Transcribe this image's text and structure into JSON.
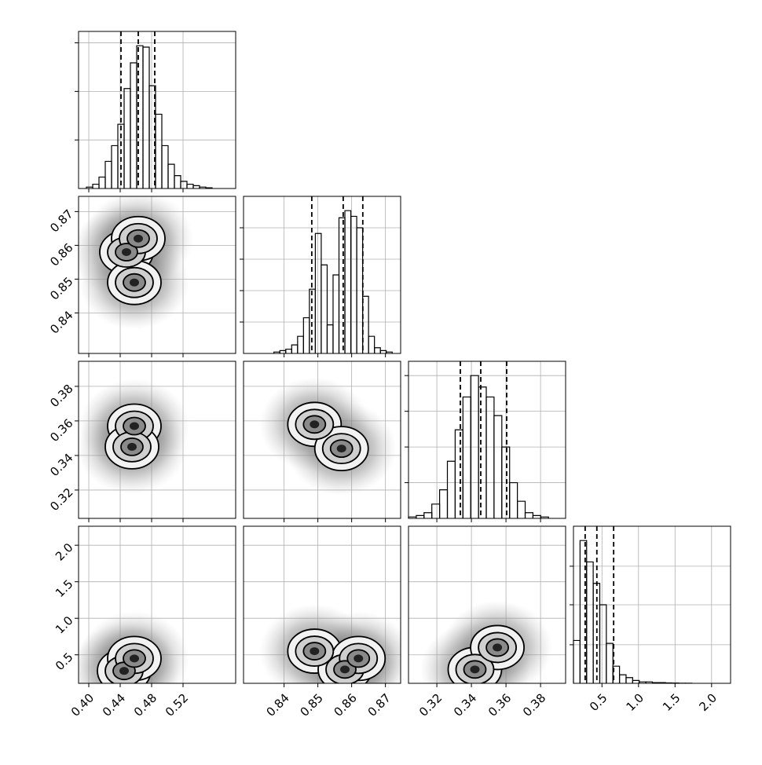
{
  "chart_data": {
    "type": "corner",
    "grid": true,
    "hist_color": "#000000",
    "contour_color": "#000000",
    "parameters": [
      {
        "lim": [
          0.387,
          0.587
        ],
        "ticks": [
          {
            "value": 0.4,
            "label": "0.40"
          },
          {
            "value": 0.44,
            "label": "0.44"
          },
          {
            "value": 0.48,
            "label": "0.48"
          },
          {
            "value": 0.52,
            "label": "0.52"
          }
        ],
        "bins": [
          0.397,
          0.405,
          0.413,
          0.421,
          0.429,
          0.437,
          0.445,
          0.453,
          0.461,
          0.469,
          0.477,
          0.485,
          0.493,
          0.501,
          0.509,
          0.517,
          0.525,
          0.533,
          0.541,
          0.549,
          0.557
        ],
        "counts": [
          1,
          3,
          8,
          19,
          30,
          45,
          70,
          88,
          100,
          99,
          72,
          52,
          30,
          17,
          9,
          5,
          3,
          2,
          1,
          0.5
        ],
        "hist_ylim": [
          0,
          110
        ],
        "hist_yticks": [
          34,
          68,
          102
        ],
        "quantiles": [
          0.441,
          0.463,
          0.484
        ]
      },
      {
        "lim": [
          0.828,
          0.8745
        ],
        "ticks": [
          0.84,
          0.85,
          0.86,
          0.87
        ],
        "bins": [
          0.837,
          0.83875,
          0.8405,
          0.84225,
          0.844,
          0.84575,
          0.8475,
          0.84925,
          0.851,
          0.85275,
          0.8545,
          0.85625,
          0.858,
          0.85975,
          0.8615,
          0.86325,
          0.865,
          0.86675,
          0.8685,
          0.87025,
          0.872
        ],
        "counts": [
          1,
          2,
          3,
          6,
          12,
          25,
          45,
          84,
          62,
          20,
          55,
          95,
          100,
          96,
          88,
          40,
          12,
          4,
          2,
          1
        ],
        "hist_ylim": [
          0,
          110
        ],
        "hist_yticks": [
          22,
          44,
          66,
          88
        ],
        "quantiles": [
          0.8482,
          0.8575,
          0.8633
        ]
      },
      {
        "lim": [
          0.3036,
          0.3945
        ],
        "ticks": [
          0.32,
          0.34,
          0.36,
          0.38
        ],
        "bins": [
          0.3036,
          0.3081,
          0.3126,
          0.3171,
          0.3216,
          0.3261,
          0.3306,
          0.3351,
          0.3396,
          0.3441,
          0.3486,
          0.3531,
          0.3576,
          0.3621,
          0.3666,
          0.3711,
          0.3756,
          0.3801,
          0.3846
        ],
        "counts": [
          1,
          2,
          4,
          10,
          20,
          40,
          62,
          85,
          100,
          92,
          85,
          72,
          50,
          25,
          12,
          4,
          2,
          1
        ],
        "hist_ylim": [
          0,
          110
        ],
        "hist_yticks": [
          25,
          50,
          75,
          100
        ],
        "quantiles": [
          0.3336,
          0.3454,
          0.3604
        ]
      },
      {
        "lim": [
          0.11,
          2.26
        ],
        "ticks": [
          0.5,
          {
            "value": 1,
            "label": "1.0"
          },
          1.5,
          {
            "value": 2,
            "label": "2.0"
          }
        ],
        "bins": [
          0.11,
          0.2,
          0.29,
          0.38,
          0.47,
          0.56,
          0.65,
          0.74,
          0.83,
          0.92,
          1.01,
          1.1,
          1.19,
          1.28,
          1.37,
          1.46,
          1.55,
          1.64,
          1.73
        ],
        "counts": [
          30,
          100,
          85,
          70,
          55,
          28,
          12,
          6,
          4,
          2,
          1,
          1,
          0.5,
          0.5,
          0.3,
          0.2,
          0.1,
          0.1
        ],
        "hist_ylim": [
          0,
          110
        ],
        "hist_yticks": [
          27,
          55,
          82
        ],
        "quantiles": [
          0.27,
          0.43,
          0.66
        ]
      }
    ],
    "pairs": [
      {
        "x": 0,
        "y": 1,
        "peaks": [
          [
            0.448,
            0.858
          ],
          [
            0.463,
            0.862
          ],
          [
            0.458,
            0.849
          ]
        ]
      },
      {
        "x": 0,
        "y": 2,
        "peaks": [
          [
            0.458,
            0.357
          ],
          [
            0.455,
            0.345
          ]
        ]
      },
      {
        "x": 1,
        "y": 2,
        "peaks": [
          [
            0.849,
            0.358
          ],
          [
            0.857,
            0.344
          ]
        ]
      },
      {
        "x": 0,
        "y": 3,
        "peaks": [
          [
            0.445,
            0.28
          ],
          [
            0.458,
            0.45
          ]
        ]
      },
      {
        "x": 1,
        "y": 3,
        "peaks": [
          [
            0.849,
            0.55
          ],
          [
            0.858,
            0.3
          ],
          [
            0.862,
            0.45
          ]
        ]
      },
      {
        "x": 2,
        "y": 3,
        "peaks": [
          [
            0.342,
            0.3
          ],
          [
            0.355,
            0.6
          ]
        ]
      }
    ]
  }
}
